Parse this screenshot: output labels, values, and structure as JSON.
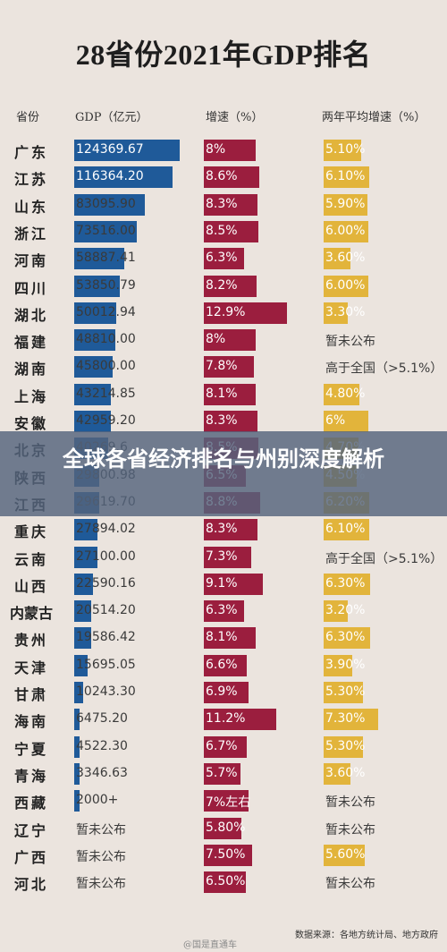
{
  "title": "28省份2021年GDP排名",
  "headers": {
    "province": "省份",
    "gdp": "GDP（亿元）",
    "growth": "增速（%）",
    "avg": "两年平均增速（%）"
  },
  "colors": {
    "gdp": "#1f5a99",
    "growth": "#9b1e3e",
    "avg": "#e2b43b",
    "background": "#ebe4de"
  },
  "banner": "全球各省经济排名与州别深度解析",
  "source": "数据来源：各地方统计局、地方政府",
  "watermark": "@国是直通车",
  "chart_data": {
    "type": "bar",
    "title": "28省份2021年GDP排名",
    "columns": [
      "省份",
      "GDP（亿元）",
      "增速（%）",
      "两年平均增速（%）"
    ],
    "rows": [
      {
        "province": "广东",
        "gdp": 124369.67,
        "gdp_label": "124369.67",
        "growth": 8.0,
        "growth_label": "8%",
        "avg": 5.1,
        "avg_label": "5.10%"
      },
      {
        "province": "江苏",
        "gdp": 116364.2,
        "gdp_label": "116364.20",
        "growth": 8.6,
        "growth_label": "8.6%",
        "avg": 6.1,
        "avg_label": "6.10%"
      },
      {
        "province": "山东",
        "gdp": 83095.9,
        "gdp_label": "83095.90",
        "growth": 8.3,
        "growth_label": "8.3%",
        "avg": 5.9,
        "avg_label": "5.90%"
      },
      {
        "province": "浙江",
        "gdp": 73516.0,
        "gdp_label": "73516.00",
        "growth": 8.5,
        "growth_label": "8.5%",
        "avg": 6.0,
        "avg_label": "6.00%"
      },
      {
        "province": "河南",
        "gdp": 58887.41,
        "gdp_label": "58887.41",
        "growth": 6.3,
        "growth_label": "6.3%",
        "avg": 3.6,
        "avg_label": "3.60%"
      },
      {
        "province": "四川",
        "gdp": 53850.79,
        "gdp_label": "53850.79",
        "growth": 8.2,
        "growth_label": "8.2%",
        "avg": 6.0,
        "avg_label": "6.00%"
      },
      {
        "province": "湖北",
        "gdp": 50012.94,
        "gdp_label": "50012.94",
        "growth": 12.9,
        "growth_label": "12.9%",
        "avg": 3.3,
        "avg_label": "3.30%"
      },
      {
        "province": "福建",
        "gdp": 48810.0,
        "gdp_label": "48810.00",
        "growth": 8.0,
        "growth_label": "8%",
        "avg": null,
        "avg_label": "暂未公布"
      },
      {
        "province": "湖南",
        "gdp": 45800.0,
        "gdp_label": "45800.00",
        "growth": 7.8,
        "growth_label": "7.8%",
        "avg": null,
        "avg_label": "高于全国（>5.1%）"
      },
      {
        "province": "上海",
        "gdp": 43214.85,
        "gdp_label": "43214.85",
        "growth": 8.1,
        "growth_label": "8.1%",
        "avg": 4.8,
        "avg_label": "4.80%"
      },
      {
        "province": "安徽",
        "gdp": 42959.2,
        "gdp_label": "42959.20",
        "growth": 8.3,
        "growth_label": "8.3%",
        "avg": 6.0,
        "avg_label": "6%"
      },
      {
        "province": "北京",
        "gdp": 40269.6,
        "gdp_label": "40269.6",
        "growth": 8.5,
        "growth_label": "8.5%",
        "avg": 4.7,
        "avg_label": "4.70%"
      },
      {
        "province": "陕西",
        "gdp": 29800.98,
        "gdp_label": "29800.98",
        "growth": 6.5,
        "growth_label": "6.5%",
        "avg": 4.5,
        "avg_label": "4.50%"
      },
      {
        "province": "江西",
        "gdp": 29619.7,
        "gdp_label": "29619.70",
        "growth": 8.8,
        "growth_label": "8.8%",
        "avg": 6.2,
        "avg_label": "6.20%"
      },
      {
        "province": "重庆",
        "gdp": 27894.02,
        "gdp_label": "27894.02",
        "growth": 8.3,
        "growth_label": "8.3%",
        "avg": 6.1,
        "avg_label": "6.10%"
      },
      {
        "province": "云南",
        "gdp": 27100.0,
        "gdp_label": "27100.00",
        "growth": 7.3,
        "growth_label": "7.3%",
        "avg": null,
        "avg_label": "高于全国（>5.1%）"
      },
      {
        "province": "山西",
        "gdp": 22590.16,
        "gdp_label": "22590.16",
        "growth": 9.1,
        "growth_label": "9.1%",
        "avg": 6.3,
        "avg_label": "6.30%"
      },
      {
        "province": "内蒙古",
        "gdp": 20514.2,
        "gdp_label": "20514.20",
        "growth": 6.3,
        "growth_label": "6.3%",
        "avg": 3.2,
        "avg_label": "3.20%"
      },
      {
        "province": "贵州",
        "gdp": 19586.42,
        "gdp_label": "19586.42",
        "growth": 8.1,
        "growth_label": "8.1%",
        "avg": 6.3,
        "avg_label": "6.30%"
      },
      {
        "province": "天津",
        "gdp": 15695.05,
        "gdp_label": "15695.05",
        "growth": 6.6,
        "growth_label": "6.6%",
        "avg": 3.9,
        "avg_label": "3.90%"
      },
      {
        "province": "甘肃",
        "gdp": 10243.3,
        "gdp_label": "10243.30",
        "growth": 6.9,
        "growth_label": "6.9%",
        "avg": 5.3,
        "avg_label": "5.30%"
      },
      {
        "province": "海南",
        "gdp": 6475.2,
        "gdp_label": "6475.20",
        "growth": 11.2,
        "growth_label": "11.2%",
        "avg": 7.3,
        "avg_label": "7.30%"
      },
      {
        "province": "宁夏",
        "gdp": 4522.3,
        "gdp_label": "4522.30",
        "growth": 6.7,
        "growth_label": "6.7%",
        "avg": 5.3,
        "avg_label": "5.30%"
      },
      {
        "province": "青海",
        "gdp": 3346.63,
        "gdp_label": "3346.63",
        "growth": 5.7,
        "growth_label": "5.7%",
        "avg": 3.6,
        "avg_label": "3.60%"
      },
      {
        "province": "西藏",
        "gdp": 2000,
        "gdp_label": "2000+",
        "growth": 7.0,
        "growth_label": "7%左右",
        "avg": null,
        "avg_label": "暂未公布"
      },
      {
        "province": "辽宁",
        "gdp": null,
        "gdp_label": "暂未公布",
        "growth": 5.8,
        "growth_label": "5.80%",
        "avg": null,
        "avg_label": "暂未公布"
      },
      {
        "province": "广西",
        "gdp": null,
        "gdp_label": "暂未公布",
        "growth": 7.5,
        "growth_label": "7.50%",
        "avg": 5.6,
        "avg_label": "5.60%"
      },
      {
        "province": "河北",
        "gdp": null,
        "gdp_label": "暂未公布",
        "growth": 6.5,
        "growth_label": "6.50%",
        "avg": null,
        "avg_label": "暂未公布"
      }
    ]
  }
}
